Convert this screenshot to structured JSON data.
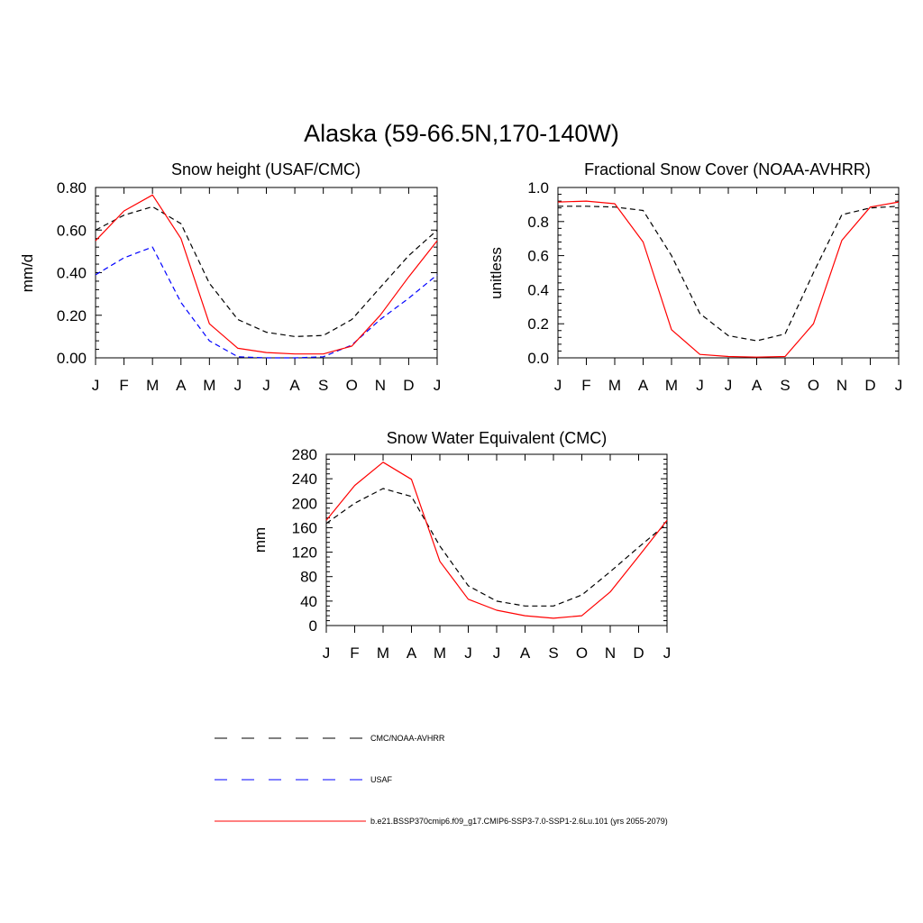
{
  "figure": {
    "title": "Alaska (59-66.5N,170-140W)"
  },
  "legend": {
    "entries": [
      {
        "label": "CMC/NOAA-AVHRR",
        "color": "#000000",
        "dash": "dashed"
      },
      {
        "label": "USAF",
        "color": "#0000ff",
        "dash": "dashed"
      },
      {
        "label": "b.e21.BSSP370cmip6.f09_g17.CMIP6-SSP3-7.0-SSP1-2.6Lu.101 (yrs 2055-2079)",
        "color": "#ff0000",
        "dash": "solid"
      }
    ]
  },
  "chart_data": [
    {
      "type": "line",
      "title": "Snow height (USAF/CMC)",
      "xlabel": "",
      "ylabel": "mm/d",
      "x": [
        "J",
        "F",
        "M",
        "A",
        "M",
        "J",
        "J",
        "A",
        "S",
        "O",
        "N",
        "D",
        "J"
      ],
      "ylim": [
        0,
        0.8
      ],
      "yticks": [
        "0.00",
        "0.20",
        "0.40",
        "0.60",
        "0.80"
      ],
      "series": [
        {
          "name": "CMC/NOAA-AVHRR",
          "color": "#000000",
          "dash": "dashed",
          "values": [
            0.6,
            0.67,
            0.71,
            0.63,
            0.35,
            0.18,
            0.12,
            0.1,
            0.105,
            0.18,
            0.33,
            0.48,
            0.6
          ]
        },
        {
          "name": "USAF",
          "color": "#0000ff",
          "dash": "dashed",
          "values": [
            0.39,
            0.47,
            0.52,
            0.26,
            0.08,
            0.005,
            0.0,
            0.0,
            0.005,
            0.06,
            0.18,
            0.28,
            0.39
          ]
        },
        {
          "name": "b.e21.BSSP370cmip6.f09_g17.CMIP6-SSP3-7.0-SSP1-2.6Lu.101 (yrs 2055-2079)",
          "color": "#ff0000",
          "dash": "solid",
          "values": [
            0.55,
            0.69,
            0.765,
            0.56,
            0.16,
            0.045,
            0.025,
            0.018,
            0.018,
            0.055,
            0.2,
            0.38,
            0.55
          ]
        }
      ]
    },
    {
      "type": "line",
      "title": "Fractional Snow Cover (NOAA-AVHRR)",
      "xlabel": "",
      "ylabel": "unitless",
      "x": [
        "J",
        "F",
        "M",
        "A",
        "M",
        "J",
        "J",
        "A",
        "S",
        "O",
        "N",
        "D",
        "J"
      ],
      "ylim": [
        0,
        1.0
      ],
      "yticks": [
        "0.0",
        "0.2",
        "0.4",
        "0.6",
        "0.8",
        "1.0"
      ],
      "series": [
        {
          "name": "CMC/NOAA-AVHRR",
          "color": "#000000",
          "dash": "dashed",
          "values": [
            0.89,
            0.89,
            0.885,
            0.865,
            0.6,
            0.26,
            0.13,
            0.1,
            0.14,
            0.5,
            0.84,
            0.88,
            0.89
          ]
        },
        {
          "name": "b.e21.BSSP370cmip6.f09_g17.CMIP6-SSP3-7.0-SSP1-2.6Lu.101 (yrs 2055-2079)",
          "color": "#ff0000",
          "dash": "solid",
          "values": [
            0.915,
            0.92,
            0.905,
            0.68,
            0.165,
            0.02,
            0.008,
            0.004,
            0.008,
            0.2,
            0.69,
            0.885,
            0.915
          ]
        }
      ]
    },
    {
      "type": "line",
      "title": "Snow Water Equivalent (CMC)",
      "xlabel": "",
      "ylabel": "mm",
      "x": [
        "J",
        "F",
        "M",
        "A",
        "M",
        "J",
        "J",
        "A",
        "S",
        "O",
        "N",
        "D",
        "J"
      ],
      "ylim": [
        0,
        280
      ],
      "yticks": [
        "0",
        "40",
        "80",
        "120",
        "160",
        "200",
        "240",
        "280"
      ],
      "series": [
        {
          "name": "CMC/NOAA-AVHRR",
          "color": "#000000",
          "dash": "dashed",
          "values": [
            167,
            200,
            224,
            211,
            130,
            65,
            40,
            32,
            32,
            50,
            88,
            128,
            167
          ]
        },
        {
          "name": "b.e21.BSSP370cmip6.f09_g17.CMIP6-SSP3-7.0-SSP1-2.6Lu.101 (yrs 2055-2079)",
          "color": "#ff0000",
          "dash": "solid",
          "values": [
            172,
            229,
            267,
            239,
            105,
            43,
            25,
            16,
            12,
            16,
            55,
            113,
            172
          ]
        }
      ]
    }
  ]
}
